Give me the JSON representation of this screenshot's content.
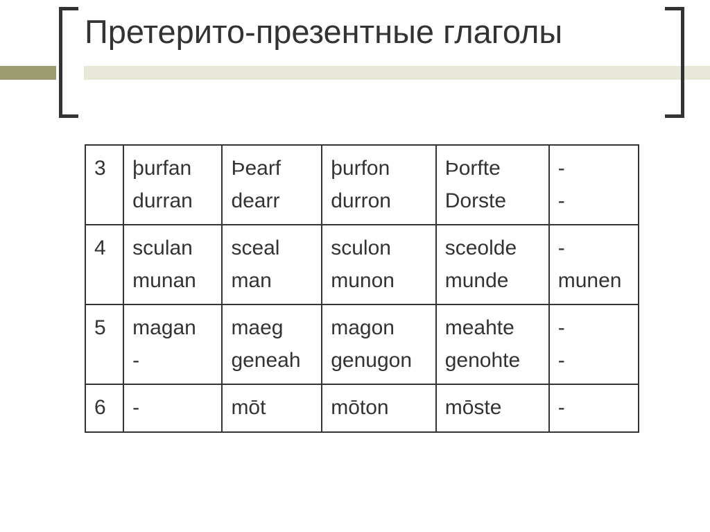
{
  "title": "Претерито-презентные глаголы",
  "table": {
    "rows": [
      {
        "num": "3",
        "c1a": "þurfan",
        "c1b": "durran",
        "c2a": "Þearf",
        "c2b": "dearr",
        "c3a": "þurfon",
        "c3b": "durron",
        "c4a": "Þorfte",
        "c4b": "Dorste",
        "c5a": "-",
        "c5b": "-"
      },
      {
        "num": "4",
        "c1a": "sculan",
        "c1b": "munan",
        "c2a": "sceal",
        "c2b": "man",
        "c3a": "sculon",
        "c3b": "munon",
        "c4a": "sceolde",
        "c4b": "munde",
        "c5a": "-",
        "c5b": "munen"
      },
      {
        "num": "5",
        "c1a": "magan",
        "c1b": "-",
        "c2a": "maeg",
        "c2b": "geneah",
        "c3a": "magon",
        "c3b": "genugon",
        "c4a": "meahte",
        "c4b": "genohte",
        "c5a": "-",
        "c5b": "-"
      },
      {
        "num": "6",
        "c1a": "-",
        "c1b": "",
        "c2a": "mōt",
        "c2b": "",
        "c3a": "mōton",
        "c3b": "",
        "c4a": "mōste",
        "c4b": "",
        "c5a": "-",
        "c5b": ""
      }
    ]
  },
  "colors": {
    "text": "#333333",
    "border": "#333333",
    "accent_dark": "#9b9c6f",
    "accent_light": "#e8e8d8",
    "background": "#ffffff"
  }
}
